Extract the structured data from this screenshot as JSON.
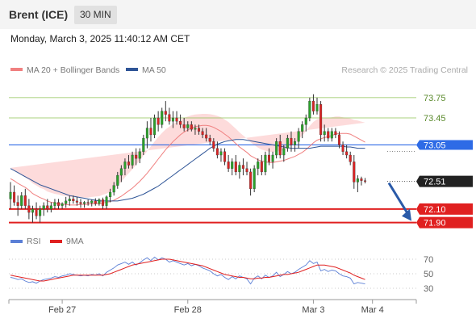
{
  "header": {
    "symbol": "Brent (ICE)",
    "timeframe": "30 MIN"
  },
  "timestamp": "Monday, March 3, 2025 11:40:12 AM CET",
  "legend": {
    "ma20_bb": "MA 20 + Bollinger Bands",
    "ma50": "MA 50",
    "ma20_color": "#f08080",
    "ma50_color": "#2f5597"
  },
  "watermark": "Research © 2025 Trading Central",
  "rsi_legend": {
    "rsi": "RSI",
    "ma9": "9MA",
    "rsi_color": "#5b7fd6",
    "ma9_color": "#e02020"
  },
  "levels": [
    {
      "label": "73.75",
      "value": 73.75,
      "kind": "resistance-thin",
      "color": "#8cc152"
    },
    {
      "label": "73.45",
      "value": 73.45,
      "kind": "resistance-thin",
      "color": "#8cc152"
    },
    {
      "label": "73.05",
      "value": 73.05,
      "kind": "pivot",
      "color": "#2e6be6"
    },
    {
      "label": "72.10",
      "value": 72.1,
      "kind": "support",
      "color": "#e02020"
    },
    {
      "label": "71.90",
      "value": 71.9,
      "kind": "support",
      "color": "#e02020"
    }
  ],
  "current_price": {
    "label": "72.51",
    "value": 72.51,
    "color": "#222222"
  },
  "rsi_axis": {
    "ticks": [
      {
        "label": "70",
        "value": 70
      },
      {
        "label": "50",
        "value": 50
      },
      {
        "label": "30",
        "value": 30
      }
    ],
    "range": [
      20,
      80
    ]
  },
  "x_axis": {
    "labels": [
      {
        "label": "Feb 27",
        "index": 14
      },
      {
        "label": "Feb 28",
        "index": 48
      },
      {
        "label": "Mar 3",
        "index": 82
      },
      {
        "label": "Mar 4",
        "index": 98
      }
    ]
  },
  "chart_data": {
    "type": "candlestick",
    "price_range": [
      71.8,
      74.0
    ],
    "candle_count": 103,
    "up_color": "#2aa12a",
    "down_color": "#d92424",
    "bands_color": "#fdd5d5",
    "candles": [
      {
        "o": 72.25,
        "h": 72.5,
        "l": 72.1,
        "c": 72.35
      },
      {
        "o": 72.35,
        "h": 72.45,
        "l": 72.15,
        "c": 72.2
      },
      {
        "o": 72.2,
        "h": 72.3,
        "l": 72.0,
        "c": 72.15
      },
      {
        "o": 72.15,
        "h": 72.35,
        "l": 72.1,
        "c": 72.3
      },
      {
        "o": 72.3,
        "h": 72.4,
        "l": 72.1,
        "c": 72.15
      },
      {
        "o": 72.15,
        "h": 72.25,
        "l": 71.95,
        "c": 72.05
      },
      {
        "o": 72.05,
        "h": 72.15,
        "l": 71.9,
        "c": 72.1
      },
      {
        "o": 72.1,
        "h": 72.2,
        "l": 71.95,
        "c": 72.0
      },
      {
        "o": 72.0,
        "h": 72.15,
        "l": 71.9,
        "c": 72.1
      },
      {
        "o": 72.1,
        "h": 72.2,
        "l": 72.0,
        "c": 72.15
      },
      {
        "o": 72.15,
        "h": 72.25,
        "l": 72.05,
        "c": 72.1
      },
      {
        "o": 72.1,
        "h": 72.2,
        "l": 72.05,
        "c": 72.15
      },
      {
        "o": 72.15,
        "h": 72.25,
        "l": 72.1,
        "c": 72.2
      },
      {
        "o": 72.2,
        "h": 72.25,
        "l": 72.1,
        "c": 72.15
      },
      {
        "o": 72.15,
        "h": 72.2,
        "l": 72.1,
        "c": 72.18
      },
      {
        "o": 72.18,
        "h": 72.28,
        "l": 72.12,
        "c": 72.22
      },
      {
        "o": 72.22,
        "h": 72.3,
        "l": 72.15,
        "c": 72.25
      },
      {
        "o": 72.25,
        "h": 72.3,
        "l": 72.18,
        "c": 72.22
      },
      {
        "o": 72.22,
        "h": 72.28,
        "l": 72.15,
        "c": 72.2
      },
      {
        "o": 72.2,
        "h": 72.25,
        "l": 72.12,
        "c": 72.18
      },
      {
        "o": 72.18,
        "h": 72.22,
        "l": 72.12,
        "c": 72.2
      },
      {
        "o": 72.2,
        "h": 72.24,
        "l": 72.15,
        "c": 72.19
      },
      {
        "o": 72.19,
        "h": 72.24,
        "l": 72.14,
        "c": 72.22
      },
      {
        "o": 72.22,
        "h": 72.26,
        "l": 72.15,
        "c": 72.18
      },
      {
        "o": 72.18,
        "h": 72.26,
        "l": 72.15,
        "c": 72.24
      },
      {
        "o": 72.24,
        "h": 72.27,
        "l": 72.1,
        "c": 72.15
      },
      {
        "o": 72.15,
        "h": 72.3,
        "l": 72.1,
        "c": 72.28
      },
      {
        "o": 72.28,
        "h": 72.4,
        "l": 72.2,
        "c": 72.35
      },
      {
        "o": 72.35,
        "h": 72.5,
        "l": 72.3,
        "c": 72.45
      },
      {
        "o": 72.45,
        "h": 72.65,
        "l": 72.4,
        "c": 72.6
      },
      {
        "o": 72.6,
        "h": 72.75,
        "l": 72.5,
        "c": 72.7
      },
      {
        "o": 72.7,
        "h": 72.85,
        "l": 72.6,
        "c": 72.8
      },
      {
        "o": 72.8,
        "h": 72.9,
        "l": 72.7,
        "c": 72.75
      },
      {
        "o": 72.75,
        "h": 72.95,
        "l": 72.7,
        "c": 72.9
      },
      {
        "o": 72.9,
        "h": 73.0,
        "l": 72.75,
        "c": 72.85
      },
      {
        "o": 72.85,
        "h": 73.0,
        "l": 72.78,
        "c": 72.95
      },
      {
        "o": 72.95,
        "h": 73.2,
        "l": 72.9,
        "c": 73.15
      },
      {
        "o": 73.15,
        "h": 73.4,
        "l": 73.0,
        "c": 73.3
      },
      {
        "o": 73.3,
        "h": 73.45,
        "l": 73.1,
        "c": 73.2
      },
      {
        "o": 73.2,
        "h": 73.5,
        "l": 73.15,
        "c": 73.45
      },
      {
        "o": 73.45,
        "h": 73.55,
        "l": 73.25,
        "c": 73.35
      },
      {
        "o": 73.35,
        "h": 73.6,
        "l": 73.3,
        "c": 73.55
      },
      {
        "o": 73.55,
        "h": 73.7,
        "l": 73.4,
        "c": 73.5
      },
      {
        "o": 73.5,
        "h": 73.6,
        "l": 73.35,
        "c": 73.4
      },
      {
        "o": 73.4,
        "h": 73.55,
        "l": 73.3,
        "c": 73.45
      },
      {
        "o": 73.45,
        "h": 73.55,
        "l": 73.35,
        "c": 73.4
      },
      {
        "o": 73.4,
        "h": 73.5,
        "l": 73.3,
        "c": 73.35
      },
      {
        "o": 73.35,
        "h": 73.45,
        "l": 73.25,
        "c": 73.3
      },
      {
        "o": 73.3,
        "h": 73.4,
        "l": 73.25,
        "c": 73.35
      },
      {
        "o": 73.35,
        "h": 73.4,
        "l": 73.25,
        "c": 73.28
      },
      {
        "o": 73.28,
        "h": 73.35,
        "l": 73.2,
        "c": 73.3
      },
      {
        "o": 73.3,
        "h": 73.35,
        "l": 73.2,
        "c": 73.25
      },
      {
        "o": 73.25,
        "h": 73.3,
        "l": 73.15,
        "c": 73.2
      },
      {
        "o": 73.2,
        "h": 73.3,
        "l": 73.1,
        "c": 73.15
      },
      {
        "o": 73.15,
        "h": 73.2,
        "l": 73.05,
        "c": 73.1
      },
      {
        "o": 73.1,
        "h": 73.15,
        "l": 72.95,
        "c": 73.0
      },
      {
        "o": 73.0,
        "h": 73.1,
        "l": 72.85,
        "c": 72.9
      },
      {
        "o": 72.9,
        "h": 73.0,
        "l": 72.8,
        "c": 72.95
      },
      {
        "o": 72.95,
        "h": 73.0,
        "l": 72.75,
        "c": 72.8
      },
      {
        "o": 72.8,
        "h": 72.9,
        "l": 72.65,
        "c": 72.7
      },
      {
        "o": 72.7,
        "h": 72.85,
        "l": 72.6,
        "c": 72.8
      },
      {
        "o": 72.8,
        "h": 72.9,
        "l": 72.6,
        "c": 72.65
      },
      {
        "o": 72.65,
        "h": 72.8,
        "l": 72.55,
        "c": 72.75
      },
      {
        "o": 72.75,
        "h": 72.85,
        "l": 72.6,
        "c": 72.7
      },
      {
        "o": 72.7,
        "h": 72.8,
        "l": 72.6,
        "c": 72.65
      },
      {
        "o": 72.65,
        "h": 72.7,
        "l": 72.3,
        "c": 72.4
      },
      {
        "o": 72.4,
        "h": 72.75,
        "l": 72.35,
        "c": 72.7
      },
      {
        "o": 72.7,
        "h": 72.85,
        "l": 72.6,
        "c": 72.8
      },
      {
        "o": 72.8,
        "h": 72.9,
        "l": 72.6,
        "c": 72.65
      },
      {
        "o": 72.65,
        "h": 72.95,
        "l": 72.6,
        "c": 72.9
      },
      {
        "o": 72.9,
        "h": 73.0,
        "l": 72.75,
        "c": 72.8
      },
      {
        "o": 72.8,
        "h": 72.95,
        "l": 72.7,
        "c": 72.9
      },
      {
        "o": 72.9,
        "h": 73.15,
        "l": 72.85,
        "c": 73.1
      },
      {
        "o": 73.1,
        "h": 73.2,
        "l": 72.85,
        "c": 72.9
      },
      {
        "o": 72.9,
        "h": 73.05,
        "l": 72.8,
        "c": 73.0
      },
      {
        "o": 73.0,
        "h": 73.2,
        "l": 72.95,
        "c": 73.15
      },
      {
        "o": 73.15,
        "h": 73.25,
        "l": 72.95,
        "c": 73.05
      },
      {
        "o": 73.05,
        "h": 73.15,
        "l": 72.95,
        "c": 73.1
      },
      {
        "o": 73.1,
        "h": 73.3,
        "l": 73.0,
        "c": 73.25
      },
      {
        "o": 73.25,
        "h": 73.4,
        "l": 73.15,
        "c": 73.35
      },
      {
        "o": 73.35,
        "h": 73.5,
        "l": 73.25,
        "c": 73.45
      },
      {
        "o": 73.45,
        "h": 73.75,
        "l": 73.4,
        "c": 73.7
      },
      {
        "o": 73.7,
        "h": 73.8,
        "l": 73.5,
        "c": 73.55
      },
      {
        "o": 73.55,
        "h": 73.75,
        "l": 73.5,
        "c": 73.65
      },
      {
        "o": 73.65,
        "h": 73.7,
        "l": 73.1,
        "c": 73.2
      },
      {
        "o": 73.2,
        "h": 73.35,
        "l": 73.1,
        "c": 73.25
      },
      {
        "o": 73.25,
        "h": 73.3,
        "l": 73.1,
        "c": 73.15
      },
      {
        "o": 73.15,
        "h": 73.3,
        "l": 73.1,
        "c": 73.25
      },
      {
        "o": 73.25,
        "h": 73.3,
        "l": 73.15,
        "c": 73.2
      },
      {
        "o": 73.2,
        "h": 73.25,
        "l": 73.0,
        "c": 73.05
      },
      {
        "o": 73.05,
        "h": 73.1,
        "l": 72.9,
        "c": 72.95
      },
      {
        "o": 72.95,
        "h": 73.05,
        "l": 72.85,
        "c": 72.9
      },
      {
        "o": 72.9,
        "h": 72.95,
        "l": 72.75,
        "c": 72.8
      },
      {
        "o": 72.8,
        "h": 72.9,
        "l": 72.4,
        "c": 72.5
      },
      {
        "o": 72.5,
        "h": 72.6,
        "l": 72.35,
        "c": 72.55
      },
      {
        "o": 72.55,
        "h": 72.58,
        "l": 72.45,
        "c": 72.52
      },
      {
        "o": 72.52,
        "h": 72.56,
        "l": 72.48,
        "c": 72.51
      }
    ],
    "ma20": [
      72.55,
      72.52,
      72.48,
      72.45,
      72.42,
      72.38,
      72.33,
      72.3,
      72.27,
      72.25,
      72.22,
      72.2,
      72.19,
      72.18,
      72.17,
      72.17,
      72.16,
      72.16,
      72.16,
      72.17,
      72.17,
      72.17,
      72.18,
      72.18,
      72.18,
      72.19,
      72.2,
      72.21,
      72.23,
      72.26,
      72.29,
      72.33,
      72.37,
      72.41,
      72.46,
      72.51,
      72.57,
      72.63,
      72.7,
      72.77,
      72.84,
      72.91,
      72.98,
      73.04,
      73.1,
      73.15,
      73.2,
      73.24,
      73.27,
      73.3,
      73.32,
      73.33,
      73.34,
      73.34,
      73.33,
      73.31,
      73.28,
      73.25,
      73.21,
      73.17,
      73.12,
      73.07,
      73.02,
      72.98,
      72.94,
      72.89,
      72.86,
      72.83,
      72.81,
      72.8,
      72.79,
      72.79,
      72.8,
      72.81,
      72.82,
      72.84,
      72.86,
      72.88,
      72.91,
      72.94,
      72.98,
      73.03,
      73.08,
      73.12,
      73.14,
      73.16,
      73.17,
      73.19,
      73.21,
      73.22,
      73.22,
      73.22,
      73.21,
      73.18,
      73.15,
      73.12,
      73.09
    ],
    "ma50": [
      72.7,
      72.67,
      72.64,
      72.61,
      72.58,
      72.55,
      72.52,
      72.49,
      72.46,
      72.44,
      72.42,
      72.4,
      72.38,
      72.36,
      72.34,
      72.32,
      72.3,
      72.29,
      72.28,
      72.27,
      72.26,
      72.25,
      72.24,
      72.23,
      72.22,
      72.22,
      72.22,
      72.22,
      72.22,
      72.22,
      72.23,
      72.24,
      72.25,
      72.26,
      72.28,
      72.3,
      72.32,
      72.35,
      72.38,
      72.41,
      72.44,
      72.48,
      72.52,
      72.56,
      72.6,
      72.64,
      72.68,
      72.72,
      72.76,
      72.8,
      72.84,
      72.88,
      72.92,
      72.96,
      73.0,
      73.03,
      73.06,
      73.08,
      73.1,
      73.11,
      73.12,
      73.13,
      73.13,
      73.13,
      73.12,
      73.11,
      73.1,
      73.09,
      73.08,
      73.07,
      73.06,
      73.05,
      73.04,
      73.03,
      73.02,
      73.01,
      73.0,
      73.0,
      73.0,
      73.0,
      73.0,
      73.0,
      73.01,
      73.02,
      73.03,
      73.03,
      73.03,
      73.03,
      73.03,
      73.03,
      73.03,
      73.02,
      73.02,
      73.01,
      73.0,
      73.0,
      73.0
    ],
    "bb_width": [
      0.32,
      0.32,
      0.31,
      0.31,
      0.3,
      0.3,
      0.3,
      0.3,
      0.29,
      0.29,
      0.28,
      0.28,
      0.27,
      0.27,
      0.26,
      0.25,
      0.24,
      0.23,
      0.22,
      0.21,
      0.2,
      0.2,
      0.2,
      0.21,
      0.22,
      0.24,
      0.26,
      0.29,
      0.33,
      0.38,
      0.43,
      0.48,
      0.52,
      0.56,
      0.6,
      0.62,
      0.64,
      0.65,
      0.66,
      0.66,
      0.65,
      0.63,
      0.6,
      0.56,
      0.52,
      0.48,
      0.44,
      0.42,
      0.4,
      0.38,
      0.36,
      0.35,
      0.34,
      0.34,
      0.35,
      0.37,
      0.4,
      0.42,
      0.43,
      0.44,
      0.44,
      0.44,
      0.43,
      0.42,
      0.41,
      0.4,
      0.38,
      0.36,
      0.34,
      0.33,
      0.32,
      0.31,
      0.3,
      0.3,
      0.31,
      0.33,
      0.36,
      0.4,
      0.45,
      0.5,
      0.55,
      0.6,
      0.62,
      0.62,
      0.6,
      0.58,
      0.56,
      0.54,
      0.52,
      0.5,
      0.48,
      0.46,
      0.46,
      0.48,
      0.52,
      0.55,
      0.58
    ],
    "rsi": [
      45,
      44,
      42,
      43,
      40,
      38,
      39,
      37,
      40,
      42,
      43,
      44,
      46,
      45,
      47,
      48,
      50,
      49,
      48,
      47,
      48,
      47,
      49,
      48,
      50,
      47,
      52,
      55,
      58,
      62,
      64,
      66,
      63,
      66,
      62,
      65,
      69,
      72,
      68,
      73,
      69,
      72,
      70,
      66,
      68,
      66,
      64,
      62,
      64,
      61,
      63,
      61,
      58,
      56,
      54,
      50,
      47,
      49,
      45,
      42,
      46,
      43,
      47,
      45,
      43,
      36,
      44,
      47,
      43,
      48,
      45,
      47,
      52,
      46,
      49,
      53,
      50,
      52,
      56,
      59,
      62,
      68,
      64,
      66,
      54,
      56,
      53,
      55,
      54,
      50,
      47,
      46,
      44,
      36,
      38,
      37,
      36
    ],
    "rsi_ma9": [
      48,
      47,
      46,
      45,
      44,
      43,
      42,
      41,
      40,
      40,
      41,
      42,
      43,
      44,
      45,
      46,
      47,
      48,
      48,
      48,
      48,
      48,
      48,
      48,
      48,
      48,
      49,
      50,
      52,
      54,
      56,
      58,
      60,
      62,
      63,
      64,
      65,
      66,
      67,
      68,
      69,
      70,
      70,
      70,
      69,
      68,
      67,
      66,
      65,
      64,
      63,
      62,
      61,
      59,
      57,
      55,
      53,
      51,
      49,
      48,
      47,
      46,
      45,
      45,
      44,
      43,
      43,
      44,
      44,
      45,
      45,
      46,
      47,
      48,
      49,
      49,
      50,
      51,
      52,
      54,
      56,
      58,
      60,
      62,
      62,
      62,
      61,
      60,
      59,
      57,
      55,
      53,
      51,
      48,
      46,
      44,
      42
    ]
  }
}
